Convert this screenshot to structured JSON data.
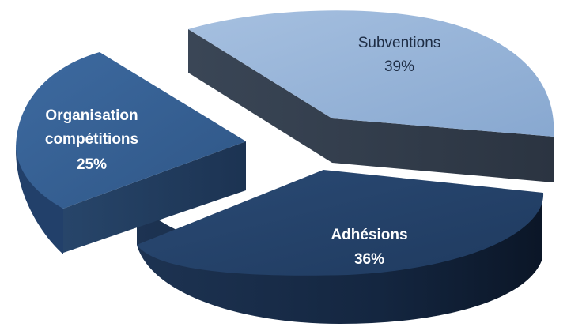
{
  "chart_data": {
    "type": "pie",
    "title": "",
    "series": [
      {
        "categories": [
          "Subventions",
          "Adhésions",
          "Organisation compétitions"
        ],
        "values": [
          39,
          36,
          25
        ],
        "labels": [
          {
            "name": "Subventions",
            "percent": "39%"
          },
          {
            "name": "Adhésions",
            "percent": "36%"
          },
          {
            "name": [
              "Organisation",
              "compétitions"
            ],
            "percent": "25%"
          }
        ]
      }
    ],
    "style": "3d-exploded",
    "colors": {
      "Subventions": "#95b3d7",
      "Adhésions": "#1f3a5f",
      "Organisation compétitions": "#355e8e"
    }
  }
}
